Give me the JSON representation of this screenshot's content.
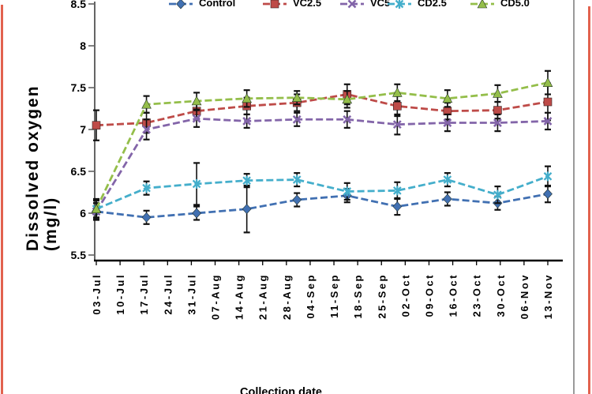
{
  "figure": {
    "background": "#ffffff",
    "border_color": "#e2624f",
    "edge_line_color": "#9a9a9a"
  },
  "chart_data": {
    "type": "line",
    "title": "",
    "xlabel": "Collection date",
    "ylabel": "Dissolved oxygen (mg/l)",
    "ylabel_lines": [
      "Dissolved oxygen",
      "(mg/l)"
    ],
    "x_tick_labels": [
      "03-Jul",
      "10-Jul",
      "17-Jul",
      "24-Jul",
      "31-Jul",
      "07-Aug",
      "14-Aug",
      "21-Aug",
      "28-Aug",
      "04-Sep",
      "11-Sep",
      "18-Sep",
      "25-Sep",
      "02-Oct",
      "09-Oct",
      "16-Oct",
      "23-Oct",
      "30-Oct",
      "06-Nov",
      "13-Nov"
    ],
    "y_ticks": [
      8.5,
      8,
      7.5,
      7,
      6.5,
      6,
      5.5
    ],
    "y_tick_labels": [
      "8.5",
      "8",
      "7.5",
      "7",
      "6.5",
      "6",
      "5.5"
    ],
    "ylim": [
      5.4,
      8.55
    ],
    "grid": false,
    "legend_position": "top",
    "error_bars": true,
    "series": [
      {
        "name": "Control",
        "color": "#4170b2",
        "marker": "diamond",
        "values": [
          6.02,
          5.95,
          6.0,
          6.05,
          6.16,
          6.21,
          6.08,
          6.17,
          6.12,
          6.23
        ],
        "errors": [
          0.1,
          0.08,
          0.08,
          0.28,
          0.08,
          0.08,
          0.1,
          0.08,
          0.08,
          0.1
        ]
      },
      {
        "name": "VC2.5",
        "color": "#be4b48",
        "marker": "square",
        "values": [
          7.05,
          7.08,
          7.22,
          7.28,
          7.32,
          7.42,
          7.28,
          7.22,
          7.23,
          7.33
        ],
        "errors": [
          0.18,
          0.12,
          0.1,
          0.1,
          0.1,
          0.12,
          0.12,
          0.1,
          0.1,
          0.22
        ]
      },
      {
        "name": "VC5",
        "color": "#8365a9",
        "marker": "x",
        "values": [
          6.02,
          7.0,
          7.13,
          7.1,
          7.12,
          7.12,
          7.06,
          7.08,
          7.08,
          7.1
        ],
        "errors": [
          0.1,
          0.12,
          0.1,
          0.08,
          0.08,
          0.1,
          0.12,
          0.1,
          0.1,
          0.1
        ]
      },
      {
        "name": "CD2.5",
        "color": "#44aecb",
        "marker": "asterisk",
        "values": [
          6.05,
          6.3,
          6.35,
          6.39,
          6.4,
          6.26,
          6.27,
          6.4,
          6.22,
          6.44
        ],
        "errors": [
          0.1,
          0.08,
          0.25,
          0.08,
          0.08,
          0.1,
          0.1,
          0.08,
          0.1,
          0.12
        ]
      },
      {
        "name": "CD5.0",
        "color": "#94be4a",
        "marker": "triangle-up",
        "values": [
          6.05,
          7.3,
          7.34,
          7.37,
          7.38,
          7.36,
          7.44,
          7.37,
          7.43,
          7.56
        ],
        "errors": [
          0.12,
          0.1,
          0.1,
          0.1,
          0.08,
          0.1,
          0.1,
          0.1,
          0.1,
          0.14
        ]
      }
    ]
  }
}
